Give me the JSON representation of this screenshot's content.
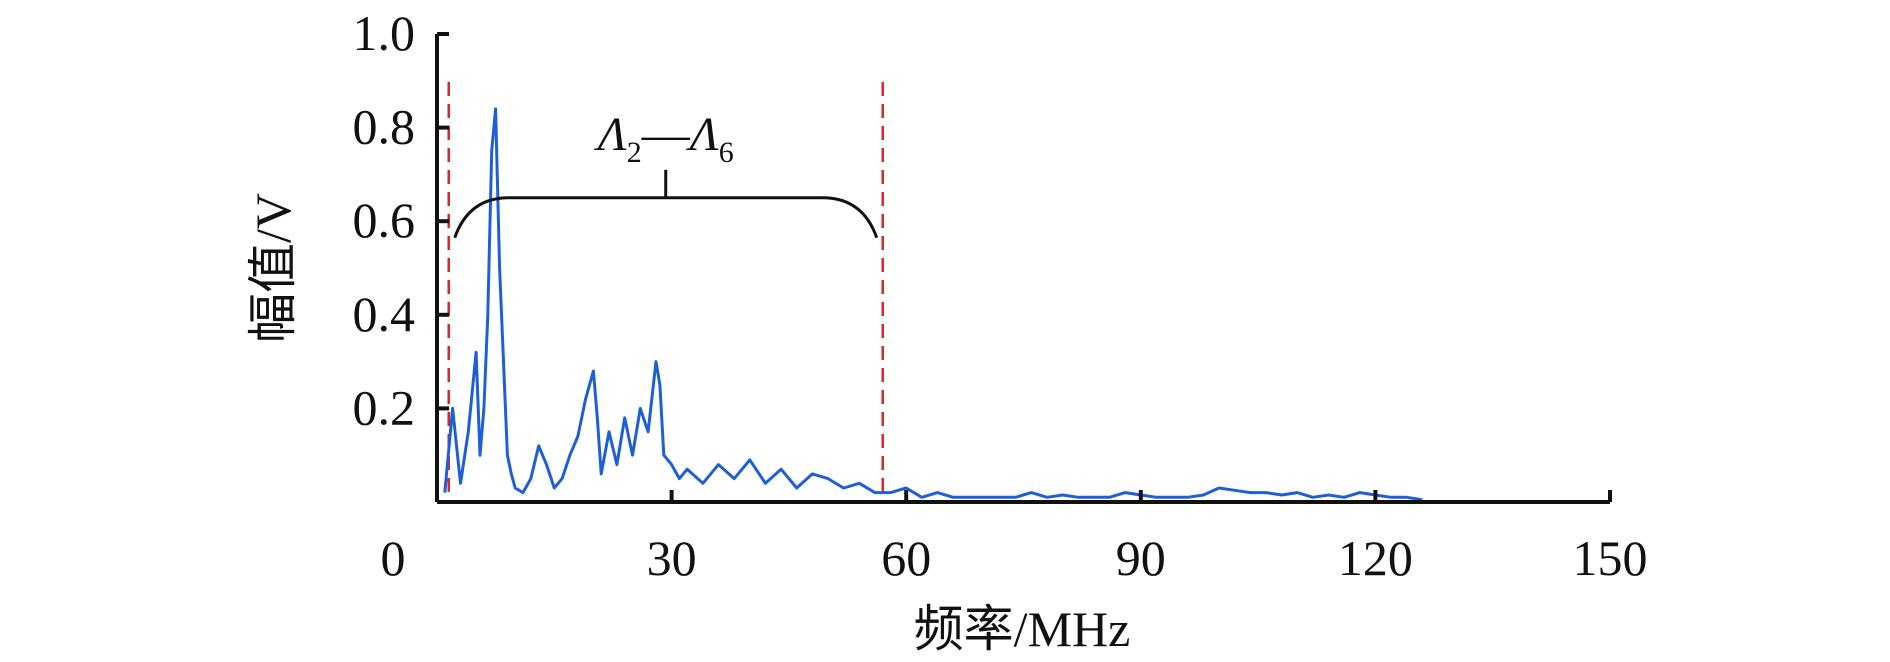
{
  "chart_data": {
    "type": "line",
    "xlabel": "频率/MHz",
    "ylabel": "幅值/V",
    "xlim": [
      0,
      150
    ],
    "ylim": [
      0,
      1.0
    ],
    "x_ticks": [
      "0",
      "30",
      "60",
      "90",
      "120",
      "150"
    ],
    "y_ticks": [
      "0.2",
      "0.4",
      "0.6",
      "0.8",
      "1.0"
    ],
    "grid": false,
    "line_color": "#1f5fd6",
    "marker_line_color": "#d62728",
    "dashed_markers_x": [
      1.5,
      57
    ],
    "annotation": {
      "label_main": "Λ",
      "sub_start": "2",
      "dash": "—",
      "sub_end": "6",
      "x_start": 1.5,
      "x_end": 57,
      "y": 0.65
    },
    "series": [
      {
        "x": [
          1,
          2,
          3,
          4,
          5,
          5.5,
          6,
          6.5,
          7,
          7.5,
          8,
          8.5,
          9,
          9.5,
          10,
          11,
          12,
          13,
          14,
          15,
          16,
          17,
          18,
          19,
          20,
          20.5,
          21,
          22,
          23,
          24,
          25,
          26,
          27,
          28,
          28.5,
          29,
          30,
          31,
          32,
          34,
          36,
          38,
          40,
          42,
          44,
          46,
          48,
          50,
          52,
          54,
          56,
          58,
          60,
          62,
          64,
          66,
          68,
          70,
          72,
          74,
          76,
          78,
          80,
          82,
          84,
          86,
          88,
          90,
          92,
          94,
          96,
          98,
          100,
          102,
          104,
          106,
          108,
          110,
          112,
          114,
          116,
          118,
          120,
          122,
          124,
          126
        ],
        "y": [
          0.02,
          0.2,
          0.04,
          0.15,
          0.32,
          0.1,
          0.2,
          0.4,
          0.75,
          0.84,
          0.5,
          0.3,
          0.1,
          0.06,
          0.03,
          0.02,
          0.05,
          0.12,
          0.08,
          0.03,
          0.05,
          0.1,
          0.14,
          0.22,
          0.28,
          0.18,
          0.06,
          0.15,
          0.08,
          0.18,
          0.1,
          0.2,
          0.15,
          0.3,
          0.25,
          0.1,
          0.08,
          0.05,
          0.07,
          0.04,
          0.08,
          0.05,
          0.09,
          0.04,
          0.07,
          0.03,
          0.06,
          0.05,
          0.03,
          0.04,
          0.02,
          0.02,
          0.03,
          0.01,
          0.02,
          0.01,
          0.01,
          0.01,
          0.01,
          0.01,
          0.02,
          0.01,
          0.015,
          0.01,
          0.01,
          0.01,
          0.02,
          0.015,
          0.01,
          0.01,
          0.01,
          0.015,
          0.03,
          0.025,
          0.02,
          0.02,
          0.015,
          0.02,
          0.01,
          0.015,
          0.01,
          0.02,
          0.015,
          0.01,
          0.01,
          0.005
        ]
      }
    ]
  }
}
